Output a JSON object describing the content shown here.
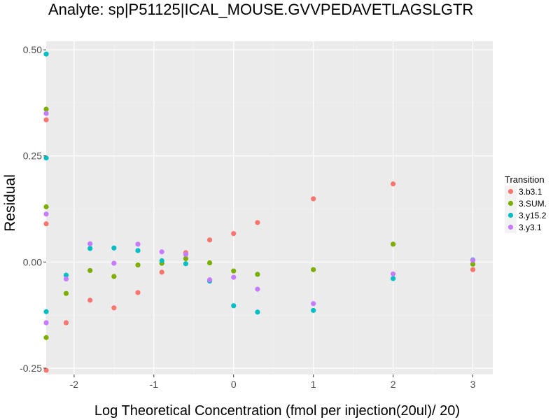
{
  "chart_data": {
    "type": "scatter",
    "title": "Analyte: sp|P51125|ICAL_MOUSE.GVVPEDAVETLAGSLGTR",
    "xlabel": "Log Theoretical Concentration (fmol per injection(20ul)/ 20)",
    "ylabel": "Residual",
    "xlim": [
      -2.35,
      3.25
    ],
    "ylim": [
      -0.265,
      0.52
    ],
    "x_ticks": [
      -2,
      -1,
      0,
      1,
      2,
      3
    ],
    "y_ticks": [
      -0.25,
      0.0,
      0.25,
      0.5
    ],
    "x_tick_labels": [
      "-2",
      "-1",
      "0",
      "1",
      "2",
      "3"
    ],
    "y_tick_labels": [
      "-0.25",
      "0.00",
      "0.25",
      "0.50"
    ],
    "grid": true,
    "legend_title": "Transition",
    "legend_position": "right",
    "series": [
      {
        "name": "3.b3.1",
        "color": "#F8766D",
        "points": [
          [
            -2.35,
            0.335
          ],
          [
            -2.35,
            0.09
          ],
          [
            -2.35,
            -0.255
          ],
          [
            -2.1,
            -0.143
          ],
          [
            -1.8,
            -0.09
          ],
          [
            -1.5,
            -0.108
          ],
          [
            -1.2,
            -0.072
          ],
          [
            -0.9,
            -0.024
          ],
          [
            -0.6,
            0.022
          ],
          [
            -0.3,
            0.052
          ],
          [
            0.0,
            0.067
          ],
          [
            0.3,
            0.093
          ],
          [
            1.0,
            0.149
          ],
          [
            2.0,
            0.184
          ],
          [
            3.0,
            -0.018
          ]
        ]
      },
      {
        "name": "3.SUM.",
        "color": "#7CAE00",
        "points": [
          [
            -2.35,
            0.36
          ],
          [
            -2.35,
            0.13
          ],
          [
            -2.35,
            -0.178
          ],
          [
            -2.1,
            -0.074
          ],
          [
            -1.8,
            -0.02
          ],
          [
            -1.5,
            -0.034
          ],
          [
            -1.2,
            -0.007
          ],
          [
            -0.9,
            -0.003
          ],
          [
            -0.6,
            0.008
          ],
          [
            -0.3,
            -0.002
          ],
          [
            0.0,
            -0.021
          ],
          [
            0.3,
            -0.029
          ],
          [
            1.0,
            -0.018
          ],
          [
            2.0,
            0.042
          ],
          [
            3.0,
            -0.005
          ]
        ]
      },
      {
        "name": "3.y15.2",
        "color": "#00BFC4",
        "points": [
          [
            -2.35,
            0.49
          ],
          [
            -2.35,
            0.245
          ],
          [
            -2.35,
            -0.117
          ],
          [
            -2.1,
            -0.031
          ],
          [
            -1.8,
            0.032
          ],
          [
            -1.5,
            0.033
          ],
          [
            -1.2,
            0.027
          ],
          [
            -0.9,
            0.003
          ],
          [
            -0.6,
            -0.004
          ],
          [
            -0.3,
            -0.045
          ],
          [
            0.0,
            -0.103
          ],
          [
            0.3,
            -0.118
          ],
          [
            1.0,
            -0.114
          ],
          [
            2.0,
            -0.039
          ],
          [
            3.0,
            0.005
          ]
        ]
      },
      {
        "name": "3.y3.1",
        "color": "#C77CFF",
        "points": [
          [
            -2.35,
            0.35
          ],
          [
            -2.35,
            0.113
          ],
          [
            -2.35,
            -0.143
          ],
          [
            -2.1,
            -0.04
          ],
          [
            -1.8,
            0.043
          ],
          [
            -1.5,
            -0.003
          ],
          [
            -1.2,
            0.042
          ],
          [
            -0.9,
            0.024
          ],
          [
            -0.6,
            0.018
          ],
          [
            -0.3,
            -0.042
          ],
          [
            0.0,
            -0.036
          ],
          [
            0.3,
            -0.064
          ],
          [
            1.0,
            -0.098
          ],
          [
            2.0,
            -0.028
          ],
          [
            3.0,
            0.004
          ]
        ]
      }
    ]
  },
  "colors": {
    "panel_background": "#EBEBEB",
    "grid_major": "#FFFFFF",
    "grid_minor": "#F2F2F2",
    "tick_text": "#4D4D4D",
    "tick_mark": "#333333"
  }
}
